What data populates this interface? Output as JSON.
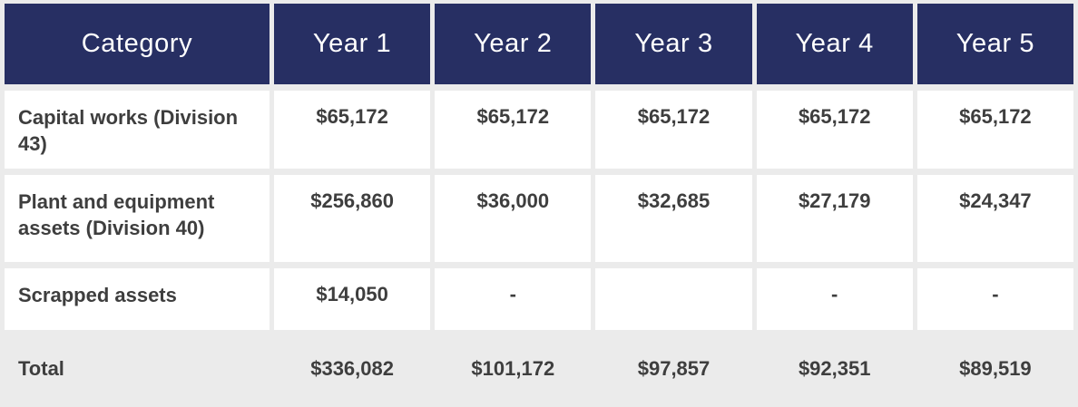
{
  "colors": {
    "header_bg": "#272f63",
    "header_text": "#ffffff",
    "body_text": "#3e3e3e",
    "cell_bg": "#ffffff",
    "page_bg": "#ebebeb"
  },
  "chart_data": {
    "type": "table",
    "columns": [
      "Category",
      "Year 1",
      "Year 2",
      "Year 3",
      "Year 4",
      "Year 5"
    ],
    "rows": [
      [
        "Capital works (Division 43)",
        "$65,172",
        "$65,172",
        "$65,172",
        "$65,172",
        "$65,172"
      ],
      [
        "Plant and equipment assets (Division 40)",
        "$256,860",
        "$36,000",
        "$32,685",
        "$27,179",
        "$24,347"
      ],
      [
        "Scrapped assets",
        "$14,050",
        "-",
        "",
        "-",
        "-"
      ],
      [
        "Total",
        "$336,082",
        "$101,172",
        "$97,857",
        "$92,351",
        "$89,519"
      ]
    ]
  },
  "table": {
    "headers": {
      "category": "Category",
      "year1": "Year 1",
      "year2": "Year 2",
      "year3": "Year 3",
      "year4": "Year 4",
      "year5": "Year 5"
    },
    "rows": [
      {
        "category": "Capital works (Division 43)",
        "values": [
          "$65,172",
          "$65,172",
          "$65,172",
          "$65,172",
          "$65,172"
        ]
      },
      {
        "category": "Plant and equipment assets (Division 40)",
        "values": [
          "$256,860",
          "$36,000",
          "$32,685",
          "$27,179",
          "$24,347"
        ]
      },
      {
        "category": "Scrapped assets",
        "values": [
          "$14,050",
          "-",
          "",
          "-",
          "-"
        ]
      }
    ],
    "total": {
      "label": "Total",
      "values": [
        "$336,082",
        "$101,172",
        "$97,857",
        "$92,351",
        "$89,519"
      ]
    }
  }
}
